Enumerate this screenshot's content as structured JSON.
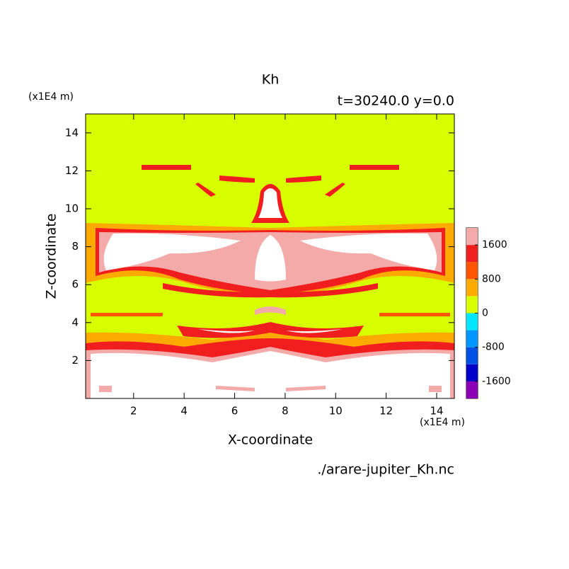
{
  "chart_data": {
    "type": "contour",
    "title": "Kh",
    "subtitle": "t=30240.0 y=0.0",
    "x_label": "X-coordinate",
    "y_label": "Z-coordinate",
    "x_unit": "(x1E4 m)",
    "y_unit": "(x1E4 m)",
    "source": "./arare-jupiter_Kh.nc",
    "xlim": [
      0.1,
      14.7
    ],
    "ylim": [
      0,
      15
    ],
    "xticks": [
      2,
      4,
      6,
      8,
      10,
      12,
      14
    ],
    "yticks": [
      2,
      4,
      6,
      8,
      10,
      12,
      14
    ],
    "colorbar": {
      "levels": [
        -2000,
        -1600,
        -1200,
        -800,
        -400,
        0,
        400,
        800,
        1200,
        1600,
        2000
      ],
      "colors": [
        "#8b00b4",
        "#0000c8",
        "#0050e6",
        "#0096ff",
        "#00e6ff",
        "#d7ff00",
        "#ffaa00",
        "#ff5500",
        "#f01e1e",
        "#f5aaaa"
      ],
      "ticks": [
        -1600,
        -800,
        0,
        800,
        1600
      ]
    }
  }
}
